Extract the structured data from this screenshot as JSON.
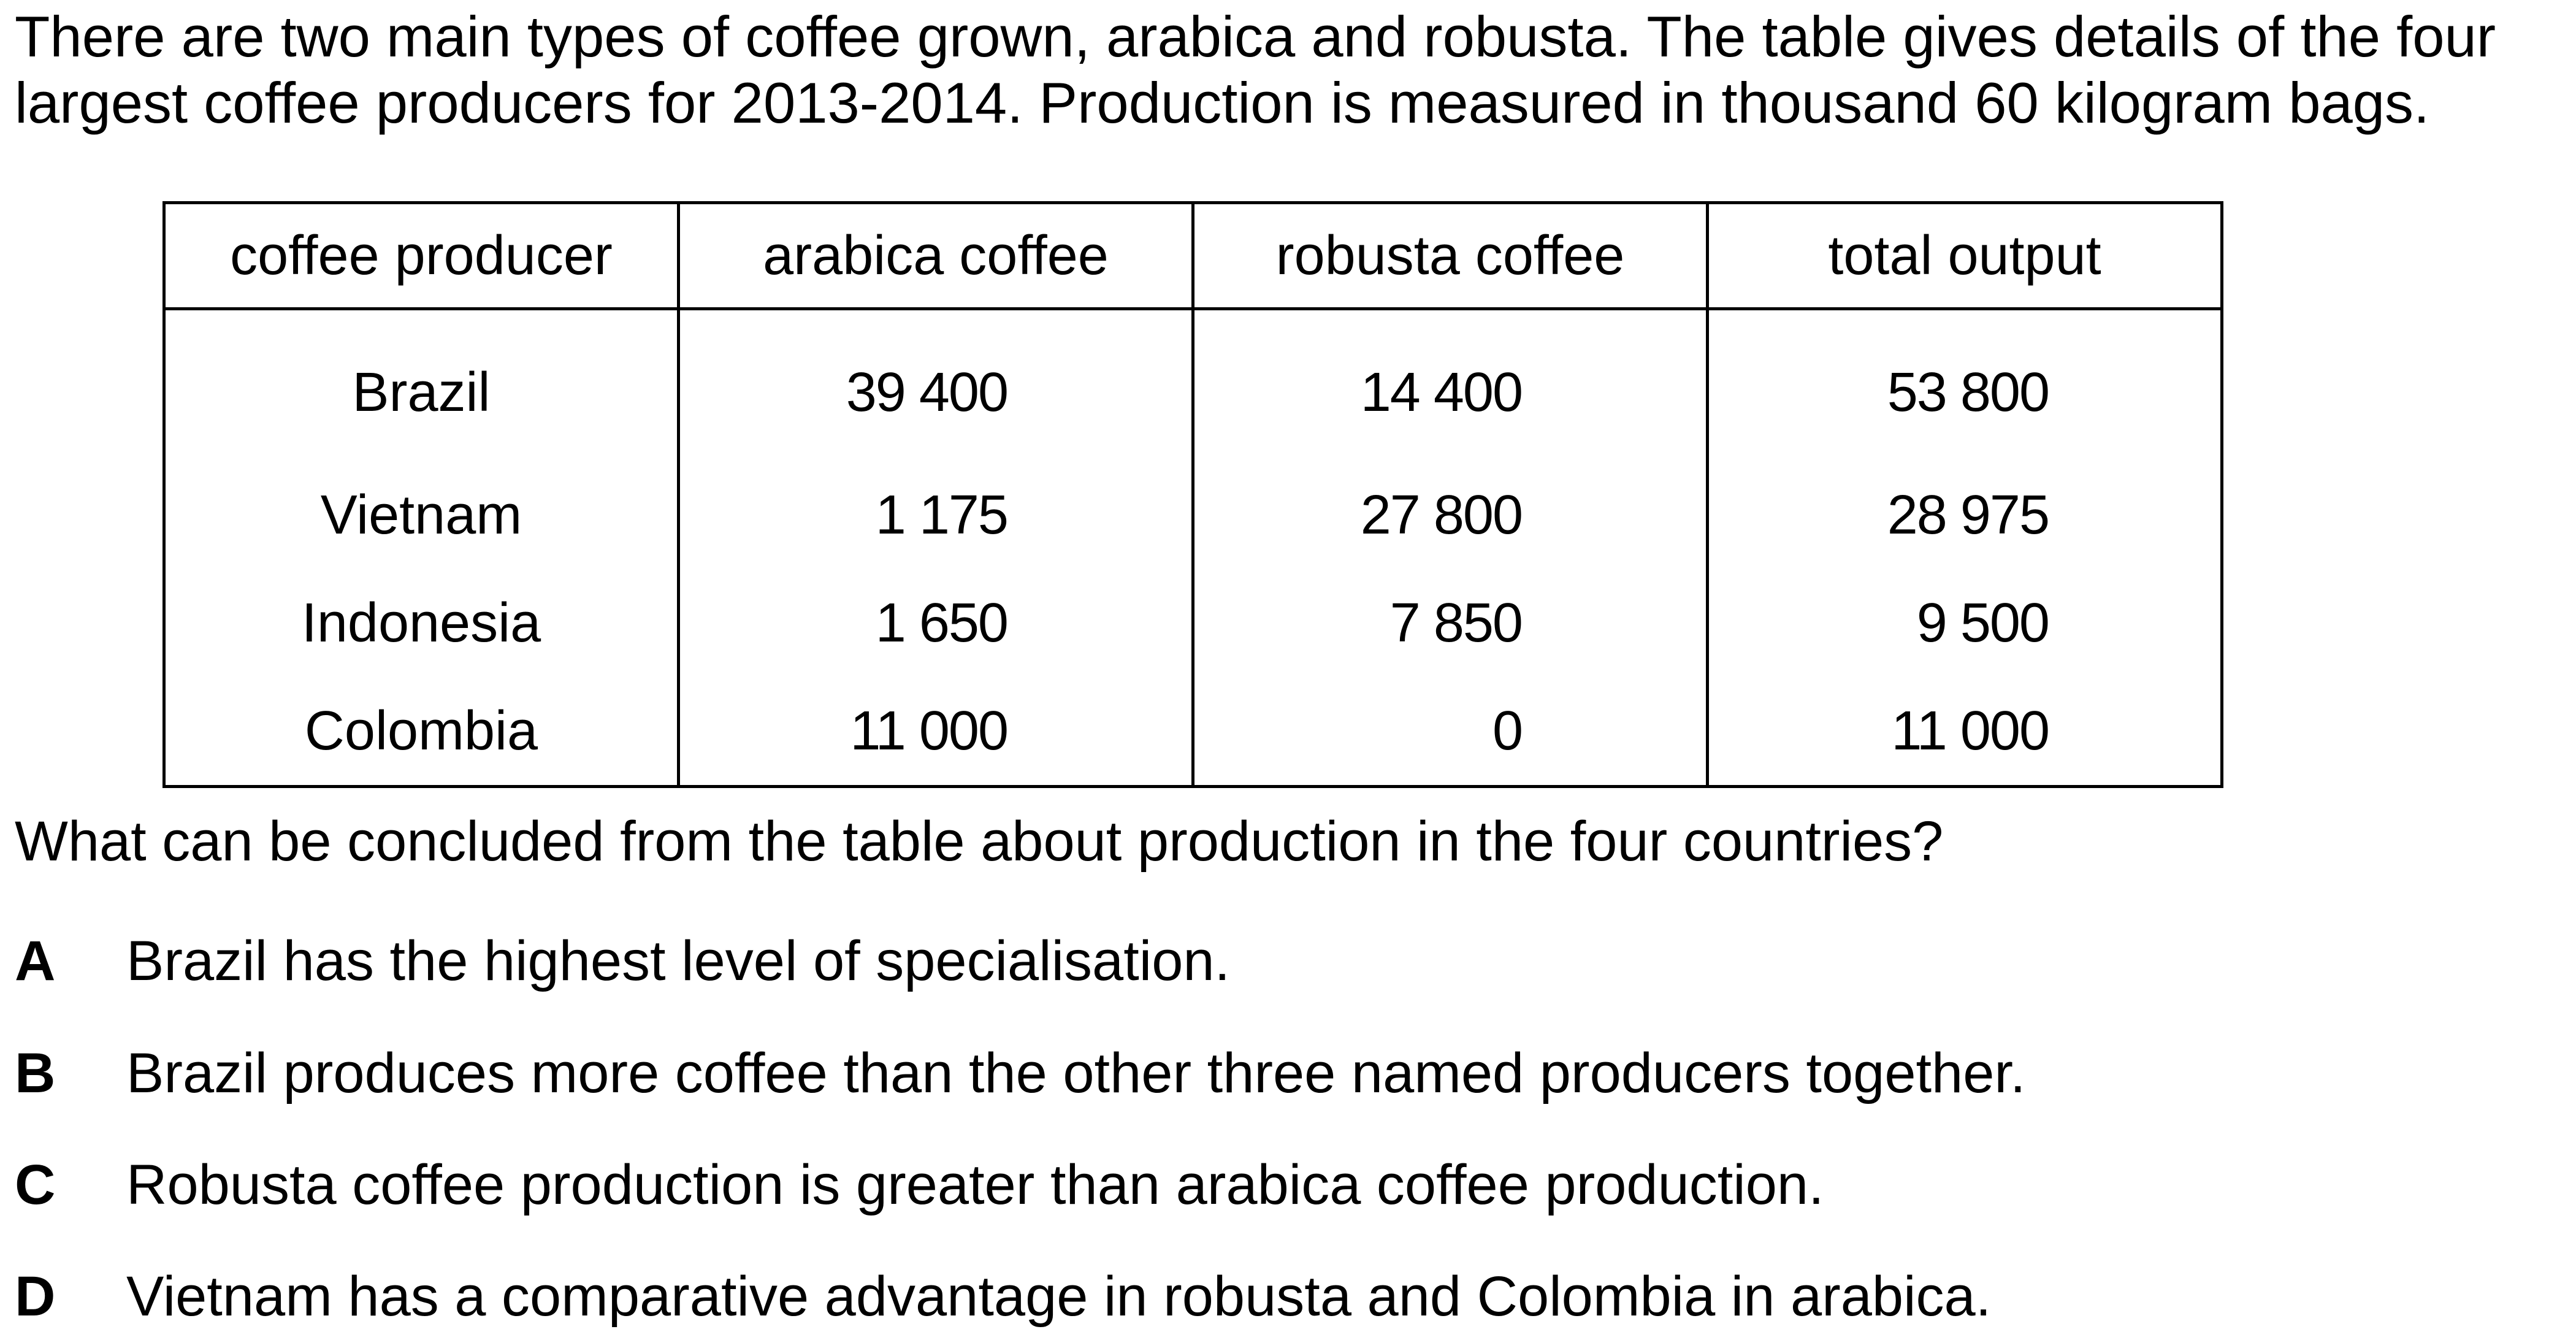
{
  "intro": "There are two main types of coffee grown, arabica and robusta. The table gives details of the four largest coffee producers for 2013-2014. Production is measured in thousand 60 kilogram bags.",
  "table": {
    "headers": [
      "coffee producer",
      "arabica coffee",
      "robusta coffee",
      "total output"
    ],
    "rows": [
      [
        "Brazil",
        "39 400",
        "14 400",
        "53 800"
      ],
      [
        "Vietnam",
        "1 175",
        "27 800",
        "28 975"
      ],
      [
        "Indonesia",
        "1 650",
        "7 850",
        "9 500"
      ],
      [
        "Colombia",
        "11 000",
        "0",
        "11 000"
      ]
    ]
  },
  "question": "What can be concluded from the table about production in the four countries?",
  "options": [
    {
      "letter": "A",
      "text": "Brazil has the highest level of specialisation."
    },
    {
      "letter": "B",
      "text": "Brazil produces more coffee than the other three named producers together."
    },
    {
      "letter": "C",
      "text": "Robusta coffee production is greater than arabica coffee production."
    },
    {
      "letter": "D",
      "text": "Vietnam has a comparative advantage in robusta and Colombia in arabica."
    }
  ]
}
